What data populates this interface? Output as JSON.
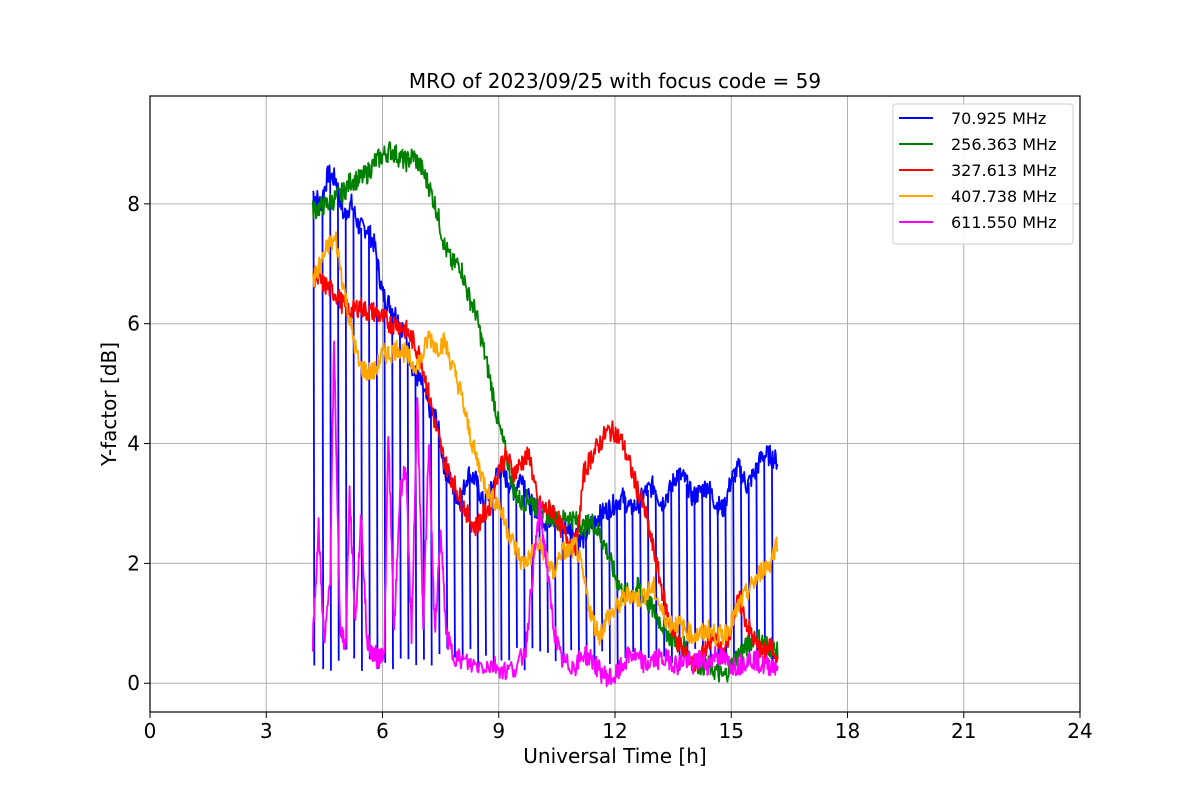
{
  "chart_data": {
    "type": "line",
    "title": "MRO of 2023/09/25 with focus code = 59",
    "xlabel": "Universal Time [h]",
    "ylabel": "Y-factor [dB]",
    "xlim": [
      0,
      24
    ],
    "ylim": [
      -0.48,
      9.8
    ],
    "xticks": [
      0,
      3,
      6,
      9,
      12,
      15,
      18,
      21,
      24
    ],
    "yticks": [
      0,
      2,
      4,
      6,
      8
    ],
    "grid": true,
    "legend_position": "top-right",
    "series": [
      {
        "name": " 70.925 MHz",
        "color": "#0000ff",
        "x": [
          4.2,
          4.4,
          4.6,
          4.8,
          5.0,
          5.2,
          5.4,
          5.6,
          5.8,
          6.0,
          6.2,
          6.4,
          6.6,
          6.8,
          7.0,
          7.2,
          7.4,
          7.6,
          7.8,
          8.0,
          8.2,
          8.4,
          8.6,
          8.8,
          9.0,
          9.2,
          9.4,
          9.6,
          9.8,
          10.0,
          10.2,
          10.4,
          10.6,
          10.8,
          11.0,
          11.2,
          11.4,
          11.6,
          11.8,
          12.0,
          12.2,
          12.4,
          12.6,
          12.8,
          13.0,
          13.2,
          13.4,
          13.6,
          13.8,
          14.0,
          14.2,
          14.4,
          14.6,
          14.8,
          15.0,
          15.2,
          15.4,
          15.6,
          15.8,
          16.0,
          16.2
        ],
        "y": [
          8.2,
          8.0,
          8.5,
          8.4,
          7.8,
          8.0,
          7.6,
          7.6,
          7.3,
          6.5,
          6.3,
          6.1,
          5.8,
          5.2,
          5.0,
          4.6,
          4.4,
          3.6,
          3.3,
          3.0,
          3.5,
          3.4,
          3.0,
          3.2,
          3.6,
          3.4,
          3.2,
          3.5,
          3.0,
          2.9,
          2.7,
          2.8,
          2.6,
          2.6,
          2.5,
          2.4,
          2.7,
          2.8,
          2.9,
          3.0,
          3.1,
          2.9,
          3.0,
          3.2,
          3.3,
          3.0,
          3.2,
          3.5,
          3.4,
          3.1,
          3.2,
          3.3,
          3.0,
          2.9,
          3.4,
          3.6,
          3.3,
          3.5,
          3.8,
          3.8,
          3.7
        ],
        "dips": [
          4.22,
          4.45,
          4.65,
          4.85,
          5.05,
          5.25,
          5.45,
          5.65,
          5.85,
          6.05,
          6.25,
          6.45,
          6.65,
          6.85,
          7.05,
          7.25,
          7.45,
          7.65,
          7.85,
          8.05,
          8.25,
          8.45,
          8.65,
          8.85,
          9.05,
          9.25,
          9.45,
          9.65,
          9.85,
          10.05,
          10.25,
          10.45,
          10.65,
          10.85,
          11.05,
          11.25,
          11.45,
          11.65,
          11.85,
          12.05,
          12.25,
          12.45,
          12.65,
          12.85,
          13.05,
          13.25,
          13.45,
          13.65,
          13.85,
          14.05,
          14.25,
          14.45,
          14.65,
          14.85,
          15.05,
          15.25,
          15.45,
          15.65,
          15.85,
          16.05
        ]
      },
      {
        "name": "256.363 MHz",
        "color": "#008000",
        "x": [
          4.2,
          4.4,
          4.6,
          4.8,
          5.0,
          5.2,
          5.4,
          5.6,
          5.8,
          6.0,
          6.2,
          6.4,
          6.6,
          6.8,
          7.0,
          7.2,
          7.4,
          7.6,
          7.8,
          8.0,
          8.2,
          8.4,
          8.6,
          8.8,
          9.0,
          9.2,
          9.4,
          9.6,
          9.8,
          10.0,
          10.2,
          10.4,
          10.6,
          10.8,
          11.0,
          11.2,
          11.4,
          11.6,
          11.8,
          12.0,
          12.2,
          12.4,
          12.6,
          12.8,
          13.0,
          13.2,
          13.4,
          13.6,
          13.8,
          14.0,
          14.2,
          14.4,
          14.6,
          14.8,
          15.0,
          15.2,
          15.4,
          15.6,
          15.8,
          16.0,
          16.2
        ],
        "y": [
          7.9,
          7.95,
          8.0,
          8.1,
          8.2,
          8.4,
          8.4,
          8.5,
          8.7,
          8.8,
          8.9,
          8.8,
          8.7,
          8.8,
          8.6,
          8.3,
          7.9,
          7.3,
          7.0,
          7.0,
          6.5,
          6.2,
          5.6,
          5.0,
          4.3,
          3.8,
          3.2,
          3.0,
          3.1,
          2.9,
          2.8,
          2.8,
          2.7,
          2.8,
          2.7,
          2.6,
          2.7,
          2.5,
          2.2,
          1.8,
          1.5,
          1.5,
          1.6,
          1.4,
          1.2,
          1.0,
          0.8,
          0.7,
          0.6,
          0.4,
          0.3,
          0.3,
          0.2,
          0.1,
          0.3,
          0.5,
          0.6,
          0.8,
          0.7,
          0.6,
          0.5
        ]
      },
      {
        "name": "327.613 MHz",
        "color": "#ff0000",
        "x": [
          4.2,
          4.4,
          4.6,
          4.8,
          5.0,
          5.2,
          5.4,
          5.6,
          5.8,
          6.0,
          6.2,
          6.4,
          6.6,
          6.8,
          7.0,
          7.2,
          7.4,
          7.6,
          7.8,
          8.0,
          8.2,
          8.4,
          8.6,
          8.8,
          9.0,
          9.2,
          9.4,
          9.6,
          9.8,
          10.0,
          10.2,
          10.4,
          10.6,
          10.8,
          11.0,
          11.2,
          11.4,
          11.6,
          11.8,
          12.0,
          12.2,
          12.4,
          12.6,
          12.8,
          13.0,
          13.2,
          13.4,
          13.6,
          13.8,
          14.0,
          14.2,
          14.4,
          14.6,
          14.8,
          15.0,
          15.2,
          15.4,
          15.6,
          15.8,
          16.0,
          16.2
        ],
        "y": [
          6.8,
          6.7,
          6.6,
          6.5,
          6.3,
          6.2,
          6.3,
          6.2,
          6.2,
          6.1,
          6.0,
          6.0,
          5.9,
          5.7,
          5.4,
          4.8,
          4.2,
          3.7,
          3.4,
          3.1,
          2.8,
          2.6,
          2.8,
          3.0,
          3.6,
          3.8,
          3.5,
          3.7,
          3.8,
          3.0,
          2.9,
          2.9,
          2.6,
          2.4,
          2.3,
          3.5,
          3.8,
          4.0,
          4.2,
          4.2,
          4.0,
          3.6,
          3.2,
          2.8,
          2.2,
          1.6,
          1.0,
          0.7,
          0.5,
          0.3,
          0.4,
          0.6,
          0.8,
          0.4,
          1.0,
          1.4,
          1.0,
          0.7,
          0.5,
          0.6,
          0.5
        ]
      },
      {
        "name": "407.738 MHz",
        "color": "#ffa500",
        "x": [
          4.2,
          4.4,
          4.6,
          4.8,
          5.0,
          5.2,
          5.4,
          5.6,
          5.8,
          6.0,
          6.2,
          6.4,
          6.6,
          6.8,
          7.0,
          7.2,
          7.4,
          7.6,
          7.8,
          8.0,
          8.2,
          8.4,
          8.6,
          8.8,
          9.0,
          9.2,
          9.4,
          9.6,
          9.8,
          10.0,
          10.2,
          10.4,
          10.6,
          10.8,
          11.0,
          11.2,
          11.4,
          11.6,
          11.8,
          12.0,
          12.2,
          12.4,
          12.6,
          12.8,
          13.0,
          13.2,
          13.4,
          13.6,
          13.8,
          14.0,
          14.2,
          14.4,
          14.6,
          14.8,
          15.0,
          15.2,
          15.4,
          15.6,
          15.8,
          16.0,
          16.2
        ],
        "y": [
          6.7,
          7.0,
          7.3,
          7.4,
          6.6,
          5.9,
          5.3,
          5.2,
          5.2,
          5.5,
          5.5,
          5.6,
          5.5,
          5.3,
          5.4,
          5.8,
          5.6,
          5.7,
          5.3,
          4.9,
          4.3,
          3.8,
          3.4,
          3.1,
          3.0,
          2.6,
          2.3,
          2.0,
          2.1,
          2.3,
          2.2,
          1.8,
          2.2,
          2.2,
          2.3,
          1.7,
          1.1,
          0.8,
          1.1,
          1.2,
          1.4,
          1.5,
          1.4,
          1.5,
          1.6,
          1.2,
          1.0,
          1.0,
          0.9,
          0.8,
          0.8,
          0.9,
          0.8,
          0.8,
          1.0,
          1.3,
          1.5,
          1.7,
          1.9,
          2.0,
          2.4
        ]
      },
      {
        "name": "611.550 MHz",
        "color": "#ff00ff",
        "x": [
          4.2,
          4.35,
          4.5,
          4.65,
          4.75,
          4.9,
          5.05,
          5.15,
          5.3,
          5.45,
          5.6,
          5.75,
          5.9,
          6.05,
          6.15,
          6.3,
          6.45,
          6.6,
          6.75,
          6.9,
          7.05,
          7.2,
          7.35,
          7.5,
          7.65,
          7.8,
          8.0,
          8.3,
          8.6,
          8.9,
          9.2,
          9.5,
          9.7,
          9.9,
          10.05,
          10.2,
          10.4,
          10.6,
          10.8,
          11.0,
          11.2,
          11.4,
          11.6,
          11.8,
          12.0,
          12.2,
          12.4,
          12.6,
          12.8,
          13.0,
          13.2,
          13.4,
          13.6,
          13.8,
          14.0,
          14.2,
          14.4,
          14.6,
          14.8,
          15.0,
          15.2,
          15.4,
          15.6,
          15.8,
          16.0,
          16.2
        ],
        "y": [
          0.7,
          2.6,
          0.6,
          1.8,
          5.7,
          1.0,
          0.6,
          3.2,
          1.0,
          2.8,
          0.7,
          0.5,
          0.4,
          0.6,
          4.2,
          0.8,
          3.2,
          3.6,
          0.8,
          4.8,
          0.9,
          4.1,
          0.8,
          2.5,
          0.8,
          0.5,
          0.4,
          0.3,
          0.3,
          0.3,
          0.2,
          0.3,
          0.6,
          2.0,
          2.9,
          2.2,
          1.0,
          0.4,
          0.3,
          0.3,
          0.5,
          0.4,
          0.2,
          0.1,
          0.1,
          0.3,
          0.5,
          0.4,
          0.3,
          0.4,
          0.4,
          0.4,
          0.3,
          0.4,
          0.3,
          0.4,
          0.3,
          0.5,
          0.4,
          0.3,
          0.3,
          0.4,
          0.4,
          0.3,
          0.3,
          0.3
        ]
      }
    ]
  }
}
